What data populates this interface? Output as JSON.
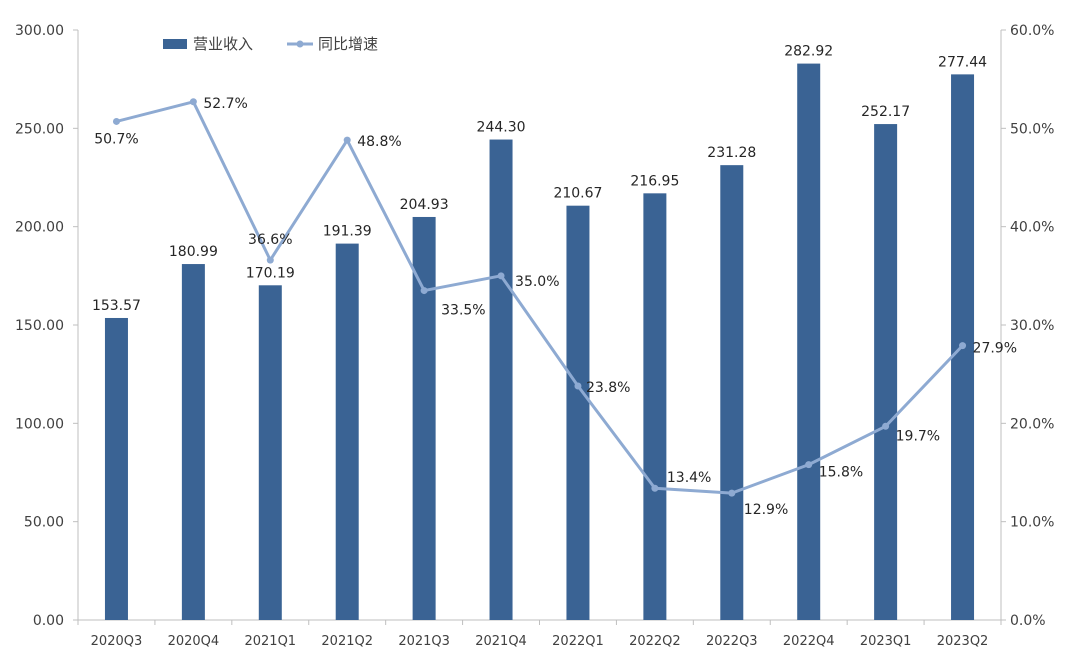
{
  "chart_data": {
    "type": "bar",
    "title": "",
    "categories": [
      "2020Q3",
      "2020Q4",
      "2021Q1",
      "2021Q2",
      "2021Q3",
      "2021Q4",
      "2022Q1",
      "2022Q2",
      "2022Q3",
      "2022Q4",
      "2023Q1",
      "2023Q2"
    ],
    "series": [
      {
        "name": "营业收入",
        "type": "bar",
        "axis": "left",
        "color": "#3a6394",
        "values": [
          153.57,
          180.99,
          170.19,
          191.39,
          204.93,
          244.3,
          210.67,
          216.95,
          231.28,
          282.92,
          252.17,
          277.44
        ],
        "labels": [
          "153.57",
          "180.99",
          "170.19",
          "191.39",
          "204.93",
          "244.30",
          "210.67",
          "216.95",
          "231.28",
          "282.92",
          "252.17",
          "277.44"
        ]
      },
      {
        "name": "同比增速",
        "type": "line",
        "axis": "right",
        "color": "#8eaad2",
        "values": [
          50.7,
          52.7,
          36.6,
          48.8,
          33.5,
          35.0,
          23.8,
          13.4,
          12.9,
          15.8,
          19.7,
          27.9
        ],
        "labels": [
          "50.7%",
          "52.7%",
          "36.6%",
          "48.8%",
          "33.5%",
          "35.0%",
          "23.8%",
          "13.4%",
          "12.9%",
          "15.8%",
          "19.7%",
          "27.9%"
        ]
      }
    ],
    "y_left": {
      "min": 0,
      "max": 300,
      "ticks": [
        "0.00",
        "50.00",
        "100.00",
        "150.00",
        "200.00",
        "250.00",
        "300.00"
      ]
    },
    "y_right": {
      "min": 0,
      "max": 60,
      "ticks": [
        "0.0%",
        "10.0%",
        "20.0%",
        "30.0%",
        "40.0%",
        "50.0%",
        "60.0%"
      ]
    },
    "grid": false,
    "legend_position": "top-left"
  }
}
